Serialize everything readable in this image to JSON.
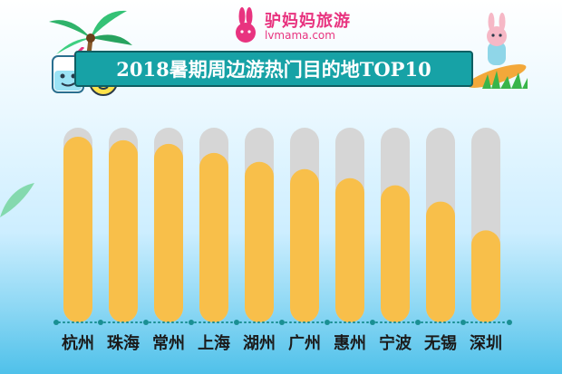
{
  "header": {
    "brand_cn": "驴妈妈旅游",
    "brand_url": "lvmama.com",
    "title": "2018暑期周边游热门目的地TOP10"
  },
  "colors": {
    "bar": "#f8bf4a",
    "track": "#d6d6d6",
    "axis": "#1a8f93",
    "banner": "#17a2a6",
    "brand": "#e8337f"
  },
  "chart_data": {
    "type": "bar",
    "title": "2018暑期周边游热门目的地TOP10",
    "xlabel": "",
    "ylabel": "",
    "categories": [
      "杭州",
      "珠海",
      "常州",
      "上海",
      "湖州",
      "广州",
      "惠州",
      "宁波",
      "无锡",
      "深圳"
    ],
    "values": [
      95,
      93,
      91,
      86,
      81,
      77,
      72,
      68,
      59,
      43
    ],
    "ylim": [
      0,
      100
    ],
    "grid": false,
    "legend": "none",
    "axis_ticks": false
  }
}
